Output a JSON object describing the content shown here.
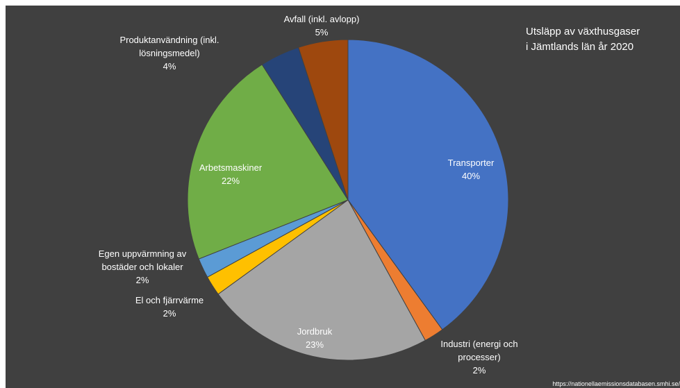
{
  "chart_data": {
    "type": "pie",
    "title_lines": [
      "Utsläpp av växthusgaser",
      "i Jämtlands län år 2020"
    ],
    "source": "https://nationellaemissionsdatabasen.smhi.se/",
    "slices": [
      {
        "label_lines": [
          "Transporter"
        ],
        "value_label": "40%",
        "value": 40,
        "color": "#4472c4"
      },
      {
        "label_lines": [
          "Industri (energi och",
          "processer)"
        ],
        "value_label": "2%",
        "value": 2,
        "color": "#ed7d31"
      },
      {
        "label_lines": [
          "Jordbruk"
        ],
        "value_label": "23%",
        "value": 23,
        "color": "#a5a5a5"
      },
      {
        "label_lines": [
          "El och fjärrvärme"
        ],
        "value_label": "2%",
        "value": 2,
        "color": "#ffc000"
      },
      {
        "label_lines": [
          "Egen uppvärmning av",
          "bostäder och lokaler"
        ],
        "value_label": "2%",
        "value": 2,
        "color": "#5b9bd5"
      },
      {
        "label_lines": [
          "Arbetsmaskiner"
        ],
        "value_label": "22%",
        "value": 22,
        "color": "#70ad47"
      },
      {
        "label_lines": [
          "Produktanvändning (inkl.",
          "lösningsmedel)"
        ],
        "value_label": "4%",
        "value": 4,
        "color": "#264478"
      },
      {
        "label_lines": [
          "Avfall (inkl. avlopp)"
        ],
        "value_label": "5%",
        "value": 5,
        "color": "#9e480e"
      }
    ]
  }
}
